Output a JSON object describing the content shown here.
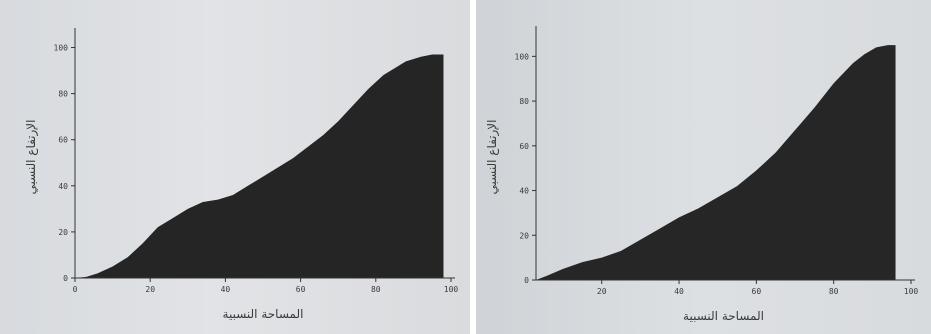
{
  "chart_data": [
    {
      "type": "area",
      "xlabel": "المساحة النسبية",
      "ylabel": "الإرتفاع النسبي",
      "xlim": [
        0,
        100
      ],
      "ylim": [
        0,
        105
      ],
      "xticks": [
        "0",
        "20",
        "40",
        "60",
        "80",
        "100"
      ],
      "yticks": [
        "0",
        "20",
        "40",
        "60",
        "80",
        "100"
      ],
      "fill_color": "#252525",
      "series": [
        {
          "x": [
            0,
            3,
            6,
            10,
            14,
            18,
            22,
            26,
            30,
            34,
            38,
            42,
            46,
            50,
            54,
            58,
            62,
            66,
            70,
            74,
            78,
            82,
            85,
            88,
            92,
            95,
            98
          ],
          "y": [
            0,
            0.5,
            2,
            5,
            9,
            15,
            22,
            26,
            30,
            33,
            34,
            36,
            40,
            44,
            48,
            52,
            57,
            62,
            68,
            75,
            82,
            88,
            91,
            94,
            96,
            97,
            97
          ]
        }
      ]
    },
    {
      "type": "area",
      "xlabel": "المساحة النسبية",
      "ylabel": "الإرتفاع النسبي",
      "xlim": [
        3,
        100
      ],
      "ylim": [
        0,
        110
      ],
      "xticks": [
        "20",
        "40",
        "60",
        "80",
        "100"
      ],
      "yticks": [
        "0",
        "20",
        "40",
        "60",
        "80",
        "100"
      ],
      "fill_color": "#262626",
      "series": [
        {
          "x": [
            3,
            6,
            10,
            15,
            20,
            25,
            30,
            35,
            40,
            45,
            50,
            55,
            60,
            65,
            70,
            75,
            80,
            85,
            88,
            91,
            94,
            96
          ],
          "y": [
            0,
            2,
            5,
            8,
            10,
            13,
            18,
            23,
            28,
            32,
            37,
            42,
            49,
            57,
            67,
            77,
            88,
            97,
            101,
            104,
            105,
            105
          ]
        }
      ]
    }
  ]
}
